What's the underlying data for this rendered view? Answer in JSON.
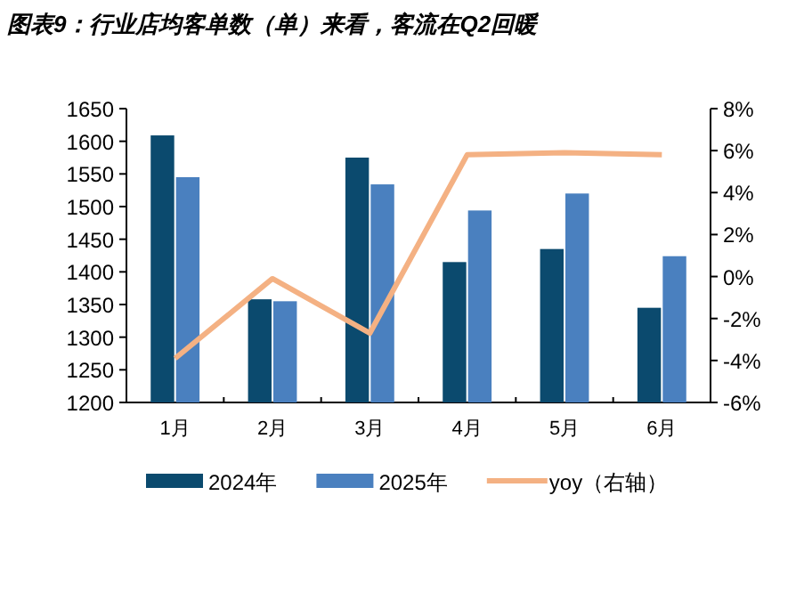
{
  "chart_data": {
    "type": "bar",
    "title": "图表9：行业店均客单数（单）来看，客流在Q2回暖",
    "categories": [
      "1月",
      "2月",
      "3月",
      "4月",
      "5月",
      "6月"
    ],
    "series": [
      {
        "name": "2024年",
        "color": "#0b4a6e",
        "values": [
          1609,
          1358,
          1575,
          1415,
          1435,
          1345
        ]
      },
      {
        "name": "2025年",
        "color": "#4a80bf",
        "values": [
          1545,
          1355,
          1534,
          1494,
          1520,
          1424
        ]
      },
      {
        "name": "yoy（右轴）",
        "type": "line",
        "axis": "y2",
        "color": "#f4b183",
        "values": [
          -3.9,
          -0.1,
          -2.7,
          5.8,
          5.9,
          5.8
        ]
      }
    ],
    "ylim": [
      1200,
      1650
    ],
    "yticks": [
      1200,
      1250,
      1300,
      1350,
      1400,
      1450,
      1500,
      1550,
      1600,
      1650
    ],
    "y2lim": [
      -6,
      8
    ],
    "y2ticks": [
      {
        "value": -6,
        "label": "-6%"
      },
      {
        "value": -4,
        "label": "-4%"
      },
      {
        "value": -2,
        "label": "-2%"
      },
      {
        "value": 0,
        "label": "0%"
      },
      {
        "value": 2,
        "label": "2%"
      },
      {
        "value": 4,
        "label": "4%"
      },
      {
        "value": 6,
        "label": "6%"
      },
      {
        "value": 8,
        "label": "8%"
      }
    ],
    "grid": false,
    "legend": "bottom",
    "marker": "none"
  }
}
